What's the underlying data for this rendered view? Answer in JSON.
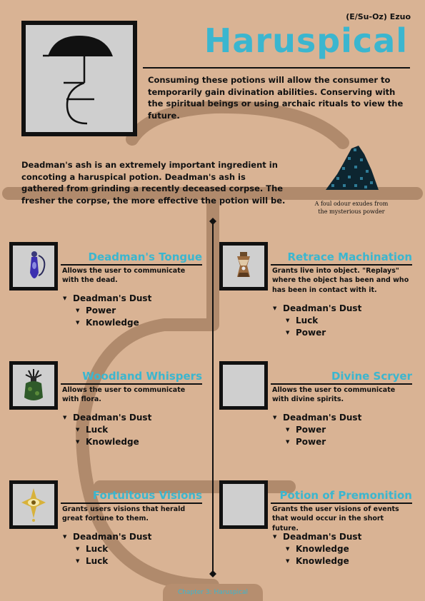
{
  "header": {
    "tag": "(E/Su-Oz) Ezuo",
    "title": "Haruspical"
  },
  "intro": "Consuming these potions will allow the consumer to temporarily gain divination abilities. Conserving with the spiritual beings or using archaic rituals to view the future.",
  "ash_text": "Deadman's ash is an extremely important ingredient in concoting a haruspical potion. Deadman's ash is gathered from grinding a recently deceased corpse. The fresher the corpse, the more effective the potion will be.",
  "ash_caption": "A foul odour exudes from the mysterious powder",
  "colors": {
    "accent": "#3bb6cf",
    "background": "#d9b394",
    "rune": "#b08a6c"
  },
  "potions": [
    {
      "name": "Deadman's Tongue",
      "description": "Allows the user to communicate with the dead.",
      "ingredient": "Deadman's Dust",
      "properties": [
        "Power",
        "Knowledge"
      ],
      "icon": "blue-vial-icon"
    },
    {
      "name": "Retrace Machination",
      "description": "Grants live into object. \"Replays\" where the object has been and who has been in contact with it.",
      "ingredient": "Deadman's Dust",
      "properties": [
        "Luck",
        "Power"
      ],
      "icon": "hourglass-flask-icon"
    },
    {
      "name": "Woodland Whispers",
      "description": "Allows the user to communicate with flora.",
      "ingredient": "Deadman's Dust",
      "properties": [
        "Luck",
        "Knowledge"
      ],
      "icon": "green-bottle-icon"
    },
    {
      "name": "Divine Scryer",
      "description": "Allows the user to communicate with divine spirits.",
      "ingredient": "Deadman's Dust",
      "properties": [
        "Power",
        "Power"
      ],
      "icon": "empty-image"
    },
    {
      "name": "Fortuitous Visions",
      "description": "Grants users visions that herald great fortune to them.",
      "ingredient": "Deadman's Dust",
      "properties": [
        "Luck",
        "Luck"
      ],
      "icon": "golden-eye-amulet-icon"
    },
    {
      "name": "Potion of Premonition",
      "description": "Grants the user visions of events that would occur in the short future.",
      "ingredient": "Deadman's Dust",
      "properties": [
        "Knowledge",
        "Knowledge"
      ],
      "icon": "empty-image"
    }
  ],
  "footer": "Chapter 3: Haruspical"
}
